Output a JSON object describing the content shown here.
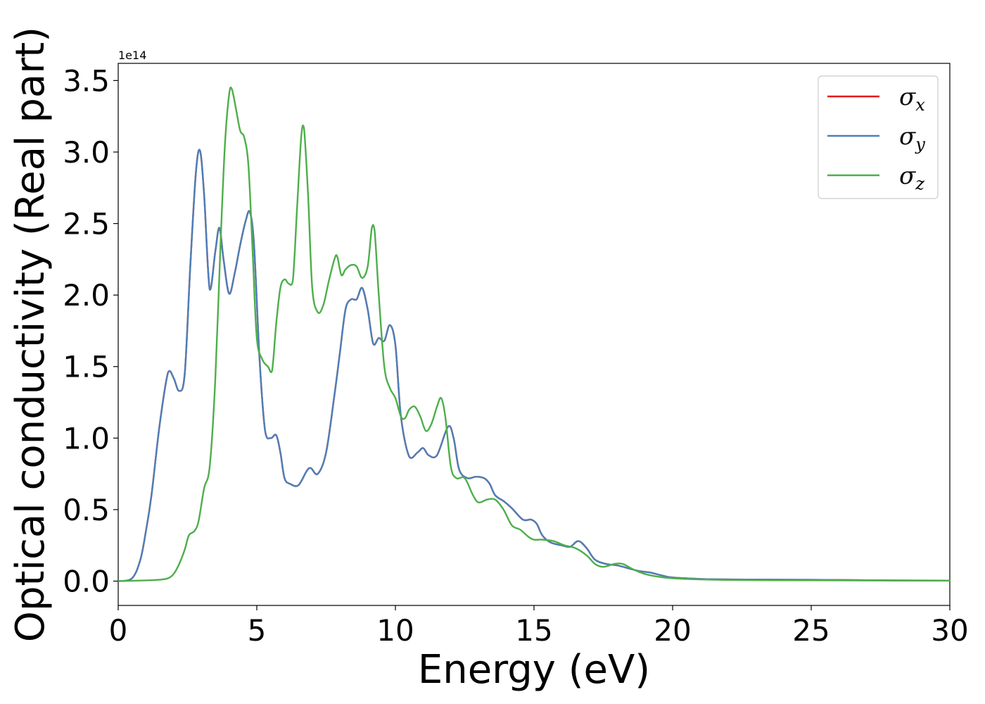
{
  "chart_data": {
    "type": "line",
    "title": "",
    "xlabel": "Energy (eV)",
    "ylabel": "Optical conductivity (Real part)",
    "y_offset_text": "1e14",
    "xlim": [
      0,
      30
    ],
    "ylim": [
      -0.17,
      3.62
    ],
    "xticks": [
      0,
      5,
      10,
      15,
      20,
      25,
      30
    ],
    "xtick_labels": [
      "0",
      "5",
      "10",
      "15",
      "20",
      "25",
      "30"
    ],
    "yticks": [
      0.0,
      0.5,
      1.0,
      1.5,
      2.0,
      2.5,
      3.0,
      3.5
    ],
    "ytick_labels": [
      "0.0",
      "0.5",
      "1.0",
      "1.5",
      "2.0",
      "2.5",
      "3.0",
      "3.5"
    ],
    "grid": false,
    "legend": {
      "position": "top-right"
    },
    "series": [
      {
        "name": "σ_x",
        "legend_base": "σ",
        "legend_sub": "x",
        "color": "#e41a1c",
        "x": [
          0,
          0.5,
          0.8,
          1.0,
          1.2,
          1.5,
          1.8,
          2.0,
          2.2,
          2.4,
          2.6,
          2.8,
          2.95,
          3.1,
          3.3,
          3.5,
          3.65,
          3.8,
          4.0,
          4.2,
          4.4,
          4.6,
          4.75,
          4.9,
          5.1,
          5.3,
          5.5,
          5.7,
          5.85,
          6.0,
          6.2,
          6.5,
          6.8,
          6.95,
          7.2,
          7.5,
          7.8,
          8.0,
          8.2,
          8.4,
          8.6,
          8.8,
          9.0,
          9.2,
          9.4,
          9.6,
          9.8,
          10.0,
          10.2,
          10.5,
          10.8,
          11.0,
          11.2,
          11.5,
          11.9,
          12.1,
          12.3,
          12.6,
          12.9,
          13.2,
          13.4,
          13.6,
          13.9,
          14.2,
          14.6,
          14.9,
          15.1,
          15.3,
          15.6,
          16.0,
          16.3,
          16.6,
          16.9,
          17.2,
          17.6,
          18.0,
          18.4,
          18.8,
          19.2,
          19.6,
          20.0,
          21,
          22,
          24,
          26,
          28,
          30
        ],
        "values": [
          0.0,
          0.02,
          0.15,
          0.35,
          0.6,
          1.1,
          1.46,
          1.42,
          1.33,
          1.45,
          2.2,
          2.85,
          3.01,
          2.7,
          2.04,
          2.3,
          2.47,
          2.25,
          2.01,
          2.15,
          2.35,
          2.52,
          2.58,
          2.35,
          1.55,
          1.05,
          1.0,
          1.02,
          0.9,
          0.72,
          0.68,
          0.67,
          0.77,
          0.79,
          0.75,
          0.9,
          1.3,
          1.6,
          1.9,
          1.97,
          1.97,
          2.05,
          1.9,
          1.66,
          1.7,
          1.68,
          1.79,
          1.65,
          1.15,
          0.87,
          0.9,
          0.93,
          0.88,
          0.88,
          1.08,
          1.0,
          0.78,
          0.72,
          0.73,
          0.72,
          0.68,
          0.6,
          0.56,
          0.51,
          0.43,
          0.43,
          0.4,
          0.32,
          0.27,
          0.25,
          0.24,
          0.28,
          0.23,
          0.15,
          0.12,
          0.11,
          0.09,
          0.07,
          0.06,
          0.04,
          0.025,
          0.015,
          0.012,
          0.01,
          0.008,
          0.005,
          0.004
        ]
      },
      {
        "name": "σ_y",
        "legend_base": "σ",
        "legend_sub": "y",
        "color": "#4c7fb8",
        "x": [
          0,
          0.5,
          0.8,
          1.0,
          1.2,
          1.5,
          1.8,
          2.0,
          2.2,
          2.4,
          2.6,
          2.8,
          2.95,
          3.1,
          3.3,
          3.5,
          3.65,
          3.8,
          4.0,
          4.2,
          4.4,
          4.6,
          4.75,
          4.9,
          5.1,
          5.3,
          5.5,
          5.7,
          5.85,
          6.0,
          6.2,
          6.5,
          6.8,
          6.95,
          7.2,
          7.5,
          7.8,
          8.0,
          8.2,
          8.4,
          8.6,
          8.8,
          9.0,
          9.2,
          9.4,
          9.6,
          9.8,
          10.0,
          10.2,
          10.5,
          10.8,
          11.0,
          11.2,
          11.5,
          11.9,
          12.1,
          12.3,
          12.6,
          12.9,
          13.2,
          13.4,
          13.6,
          13.9,
          14.2,
          14.6,
          14.9,
          15.1,
          15.3,
          15.6,
          16.0,
          16.3,
          16.6,
          16.9,
          17.2,
          17.6,
          18.0,
          18.4,
          18.8,
          19.2,
          19.6,
          20.0,
          21,
          22,
          24,
          26,
          28,
          30
        ],
        "values": [
          0.0,
          0.02,
          0.15,
          0.35,
          0.6,
          1.1,
          1.46,
          1.42,
          1.33,
          1.45,
          2.2,
          2.85,
          3.01,
          2.7,
          2.04,
          2.3,
          2.47,
          2.25,
          2.01,
          2.15,
          2.35,
          2.52,
          2.58,
          2.35,
          1.55,
          1.05,
          1.0,
          1.02,
          0.9,
          0.72,
          0.68,
          0.67,
          0.77,
          0.79,
          0.75,
          0.9,
          1.3,
          1.6,
          1.9,
          1.97,
          1.97,
          2.05,
          1.9,
          1.66,
          1.7,
          1.68,
          1.79,
          1.65,
          1.15,
          0.87,
          0.9,
          0.93,
          0.88,
          0.88,
          1.08,
          1.0,
          0.78,
          0.72,
          0.73,
          0.72,
          0.68,
          0.6,
          0.56,
          0.51,
          0.43,
          0.43,
          0.4,
          0.32,
          0.27,
          0.25,
          0.24,
          0.28,
          0.23,
          0.15,
          0.12,
          0.11,
          0.09,
          0.07,
          0.06,
          0.04,
          0.025,
          0.015,
          0.012,
          0.01,
          0.008,
          0.005,
          0.004
        ]
      },
      {
        "name": "σ_z",
        "legend_base": "σ",
        "legend_sub": "z",
        "color": "#4daf4a",
        "x": [
          0,
          1.0,
          1.5,
          1.8,
          2.0,
          2.2,
          2.4,
          2.55,
          2.75,
          2.9,
          3.1,
          3.3,
          3.5,
          3.7,
          3.85,
          4.0,
          4.1,
          4.25,
          4.4,
          4.55,
          4.7,
          4.85,
          5.0,
          5.2,
          5.4,
          5.55,
          5.7,
          5.85,
          6.0,
          6.15,
          6.3,
          6.45,
          6.6,
          6.7,
          6.85,
          7.0,
          7.2,
          7.4,
          7.6,
          7.8,
          7.9,
          8.05,
          8.2,
          8.4,
          8.6,
          8.8,
          9.0,
          9.15,
          9.25,
          9.4,
          9.6,
          9.8,
          10.0,
          10.2,
          10.35,
          10.5,
          10.7,
          10.9,
          11.1,
          11.3,
          11.5,
          11.65,
          11.8,
          12.0,
          12.2,
          12.5,
          12.8,
          13.0,
          13.3,
          13.6,
          13.9,
          14.2,
          14.5,
          14.8,
          15.0,
          15.3,
          15.7,
          16.1,
          16.5,
          16.9,
          17.2,
          17.5,
          17.9,
          18.2,
          18.6,
          19.0,
          19.5,
          20.0,
          21,
          22,
          24,
          26,
          28,
          30
        ],
        "values": [
          0.0,
          0.005,
          0.01,
          0.02,
          0.05,
          0.12,
          0.22,
          0.32,
          0.35,
          0.42,
          0.65,
          0.8,
          1.4,
          2.4,
          3.05,
          3.4,
          3.44,
          3.3,
          3.15,
          3.1,
          2.9,
          2.3,
          1.7,
          1.55,
          1.5,
          1.47,
          1.8,
          2.05,
          2.11,
          2.08,
          2.1,
          2.6,
          3.1,
          3.17,
          2.7,
          2.05,
          1.88,
          1.93,
          2.1,
          2.25,
          2.27,
          2.14,
          2.18,
          2.21,
          2.2,
          2.12,
          2.2,
          2.47,
          2.45,
          2.0,
          1.5,
          1.35,
          1.28,
          1.15,
          1.14,
          1.2,
          1.22,
          1.15,
          1.05,
          1.1,
          1.22,
          1.28,
          1.15,
          0.8,
          0.72,
          0.72,
          0.6,
          0.55,
          0.57,
          0.57,
          0.5,
          0.39,
          0.36,
          0.31,
          0.29,
          0.29,
          0.28,
          0.25,
          0.23,
          0.18,
          0.12,
          0.1,
          0.12,
          0.12,
          0.08,
          0.05,
          0.03,
          0.02,
          0.012,
          0.008,
          0.006,
          0.005,
          0.004,
          0.004
        ]
      }
    ]
  }
}
